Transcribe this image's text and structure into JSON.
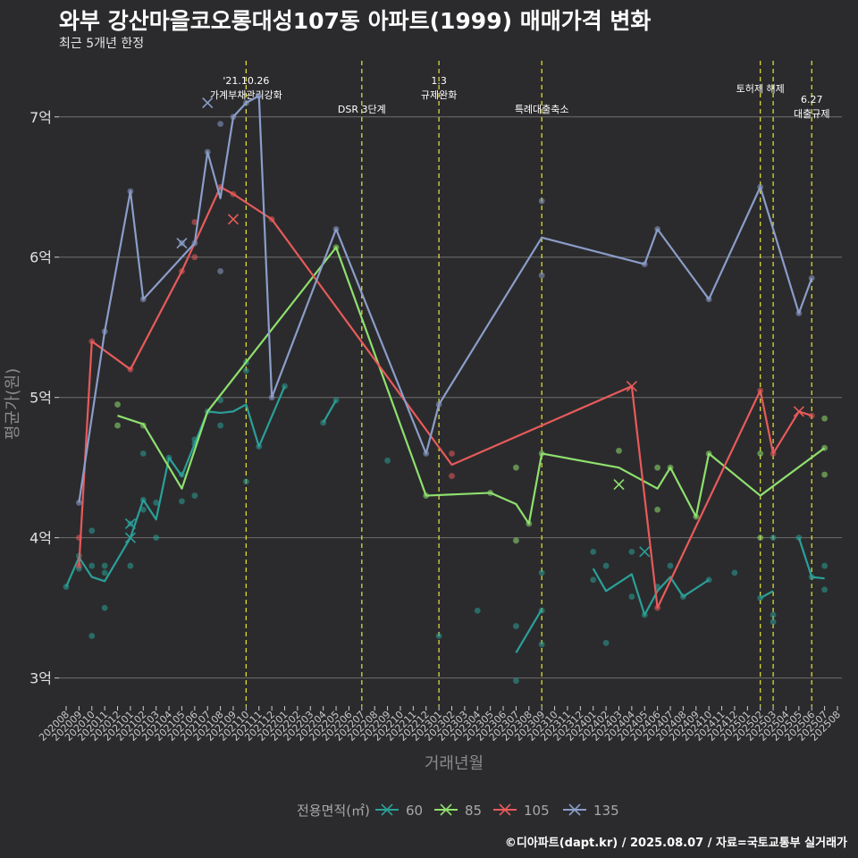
{
  "title": "와부 강산마을코오롱대성107동 아파트(1999) 매매가격 변화",
  "subtitle": "최근 5개년 한정",
  "credit": "©디아파트(dapt.kr) / 2025.08.07 / 자료=국토교통부 실거래가",
  "chart_data": {
    "type": "line",
    "xlabel": "거래년월",
    "ylabel": "평균가(원)",
    "ylim": [
      2.8,
      7.4
    ],
    "y_ticks": [
      {
        "value": 3,
        "label": "3억"
      },
      {
        "value": 4,
        "label": "4억"
      },
      {
        "value": 5,
        "label": "5억"
      },
      {
        "value": 6,
        "label": "6억"
      },
      {
        "value": 7,
        "label": "7억"
      }
    ],
    "x_ticks": [
      "202008",
      "202009",
      "202010",
      "202011",
      "202012",
      "202101",
      "202102",
      "202103",
      "202104",
      "202105",
      "202106",
      "202107",
      "202108",
      "202109",
      "202110",
      "202111",
      "202112",
      "202201",
      "202202",
      "202203",
      "202204",
      "202205",
      "202206",
      "202207",
      "202208",
      "202209",
      "202210",
      "202211",
      "202212",
      "202301",
      "202302",
      "202303",
      "202304",
      "202305",
      "202306",
      "202307",
      "202308",
      "202309",
      "202310",
      "202311",
      "202312",
      "202401",
      "202402",
      "202403",
      "202404",
      "202405",
      "202406",
      "202407",
      "202408",
      "202409",
      "202410",
      "202411",
      "202412",
      "202501",
      "202502",
      "202503",
      "202504",
      "202505",
      "202506",
      "202507",
      "202508"
    ],
    "legend_title": "전용면적(㎡)",
    "legend_position": "bottom",
    "events": [
      {
        "x": 14.0,
        "label": "'21.10.26\n가계부채관리강화"
      },
      {
        "x": 23.0,
        "label": "DSR 3단계"
      },
      {
        "x": 29.0,
        "label": "1.3\n규제완화"
      },
      {
        "x": 37.0,
        "label": "특례대출축소"
      },
      {
        "x": 54.0,
        "label": "토허제 해제"
      },
      {
        "x": 55.0,
        "label": ""
      },
      {
        "x": 58.0,
        "label": "6.27\n대출규제"
      }
    ],
    "series": [
      {
        "name": "60",
        "color": "#2aa098",
        "line": [
          [
            0,
            3.65
          ],
          [
            1,
            3.86
          ],
          [
            2,
            3.72
          ],
          [
            3,
            3.69
          ],
          [
            5,
            4.0
          ],
          [
            6,
            4.27
          ],
          [
            7,
            4.13
          ],
          [
            8,
            4.57
          ],
          [
            9,
            4.44
          ],
          [
            11,
            4.9
          ],
          [
            12,
            4.89
          ],
          [
            13,
            4.9
          ],
          [
            14,
            4.95
          ],
          [
            15,
            4.65
          ],
          [
            17,
            5.08
          ],
          null,
          [
            20,
            4.82
          ],
          [
            21,
            4.98
          ],
          null,
          [
            35,
            3.18
          ],
          [
            37,
            3.49
          ],
          null,
          [
            41,
            3.78
          ],
          [
            42,
            3.62
          ],
          [
            44,
            3.74
          ],
          [
            45,
            3.45
          ],
          [
            46,
            3.62
          ],
          [
            47,
            3.72
          ],
          [
            48,
            3.58
          ],
          [
            50,
            3.7
          ],
          null,
          [
            54,
            3.57
          ],
          [
            55,
            3.62
          ],
          null,
          [
            57,
            4.0
          ],
          [
            58,
            3.72
          ],
          [
            59,
            3.71
          ]
        ],
        "points": [
          [
            0,
            3.65
          ],
          [
            1,
            3.78
          ],
          [
            1,
            3.87
          ],
          [
            2,
            3.3
          ],
          [
            2,
            3.8
          ],
          [
            2,
            4.05
          ],
          [
            3,
            3.75
          ],
          [
            3,
            3.8
          ],
          [
            3,
            3.5
          ],
          [
            5,
            4.1
          ],
          [
            5,
            3.8
          ],
          [
            6,
            4.6
          ],
          [
            6,
            4.27
          ],
          [
            6,
            4.2
          ],
          [
            7,
            4.0
          ],
          [
            7,
            4.25
          ],
          [
            8,
            4.57
          ],
          [
            9,
            4.45
          ],
          [
            9,
            4.26
          ],
          [
            10,
            4.3
          ],
          [
            10,
            4.67
          ],
          [
            10,
            4.7
          ],
          [
            11,
            4.9
          ],
          [
            12,
            4.98
          ],
          [
            12,
            4.8
          ],
          [
            14,
            5.25
          ],
          [
            14,
            5.19
          ],
          [
            14,
            4.4
          ],
          [
            15,
            4.65
          ],
          [
            17,
            5.08
          ],
          [
            20,
            4.82
          ],
          [
            21,
            4.98
          ],
          [
            25,
            4.55
          ],
          [
            29,
            3.3
          ],
          [
            32,
            3.48
          ],
          [
            35,
            3.37
          ],
          [
            35,
            2.98
          ],
          [
            37,
            3.75
          ],
          [
            37,
            3.24
          ],
          [
            37,
            3.48
          ],
          [
            41,
            3.9
          ],
          [
            41,
            3.7
          ],
          [
            42,
            3.8
          ],
          [
            42,
            3.25
          ],
          [
            44,
            3.9
          ],
          [
            44,
            3.58
          ],
          [
            45,
            3.45
          ],
          [
            46,
            3.65
          ],
          [
            47,
            3.8
          ],
          [
            48,
            3.58
          ],
          [
            50,
            3.7
          ],
          [
            52,
            3.75
          ],
          [
            54,
            3.57
          ],
          [
            55,
            4.0
          ],
          [
            55,
            3.4
          ],
          [
            55,
            3.45
          ],
          [
            57,
            4.0
          ],
          [
            58,
            3.72
          ],
          [
            59,
            3.8
          ],
          [
            59,
            3.63
          ]
        ],
        "crosses": [
          [
            5,
            4.0
          ],
          [
            5,
            4.1
          ],
          [
            45,
            3.9
          ]
        ]
      },
      {
        "name": "85",
        "color": "#8fe06e",
        "line": [
          [
            4,
            4.87
          ],
          [
            6,
            4.81
          ],
          [
            9,
            4.35
          ],
          [
            11,
            4.9
          ],
          [
            21,
            6.07
          ],
          [
            28,
            4.3
          ],
          [
            33,
            4.32
          ],
          [
            35,
            4.24
          ],
          [
            36,
            4.1
          ],
          [
            37,
            4.6
          ],
          [
            43,
            4.5
          ],
          [
            46,
            4.35
          ],
          [
            47,
            4.5
          ],
          [
            49,
            4.15
          ],
          [
            50,
            4.6
          ],
          [
            54,
            4.3
          ],
          [
            59,
            4.64
          ]
        ],
        "points": [
          [
            4,
            4.95
          ],
          [
            4,
            4.8
          ],
          [
            6,
            4.8
          ],
          [
            21,
            6.07
          ],
          [
            28,
            4.3
          ],
          [
            33,
            4.32
          ],
          [
            35,
            4.5
          ],
          [
            35,
            3.98
          ],
          [
            36,
            4.1
          ],
          [
            37,
            4.6
          ],
          [
            43,
            4.62
          ],
          [
            46,
            4.5
          ],
          [
            46,
            4.2
          ],
          [
            47,
            4.5
          ],
          [
            49,
            4.15
          ],
          [
            50,
            4.6
          ],
          [
            54,
            4.6
          ],
          [
            54,
            4.0
          ],
          [
            59,
            4.64
          ],
          [
            59,
            4.85
          ],
          [
            59,
            4.45
          ]
        ],
        "crosses": [
          [
            43,
            4.38
          ]
        ]
      },
      {
        "name": "105",
        "color": "#e85a5a",
        "line": [
          [
            1,
            3.8
          ],
          [
            2,
            5.4
          ],
          [
            5,
            5.2
          ],
          [
            9,
            5.9
          ],
          [
            12,
            6.5
          ],
          [
            13,
            6.45
          ],
          [
            16,
            6.27
          ],
          [
            30,
            4.52
          ],
          [
            44,
            5.08
          ],
          [
            46,
            3.5
          ],
          [
            54,
            5.05
          ],
          [
            55,
            4.6
          ],
          [
            57,
            4.9
          ],
          [
            58,
            4.87
          ]
        ],
        "points": [
          [
            1,
            3.8
          ],
          [
            1,
            4.0
          ],
          [
            2,
            5.4
          ],
          [
            5,
            5.2
          ],
          [
            9,
            5.9
          ],
          [
            10,
            6.25
          ],
          [
            10,
            6.0
          ],
          [
            12,
            6.5
          ],
          [
            13,
            6.45
          ],
          [
            16,
            6.27
          ],
          [
            30,
            4.6
          ],
          [
            30,
            4.44
          ],
          [
            46,
            3.5
          ],
          [
            54,
            5.05
          ],
          [
            55,
            4.6
          ],
          [
            58,
            4.87
          ]
        ],
        "crosses": [
          [
            13,
            6.27
          ],
          [
            44,
            5.08
          ],
          [
            57,
            4.9
          ]
        ]
      },
      {
        "name": "135",
        "color": "#8b9dc9",
        "line": [
          [
            1,
            4.25
          ],
          [
            3,
            5.47
          ],
          [
            5,
            6.47
          ],
          [
            6,
            5.7
          ],
          [
            9,
            6.0
          ],
          [
            10,
            6.1
          ],
          [
            11,
            6.75
          ],
          [
            12,
            6.42
          ],
          [
            13,
            7.0
          ],
          [
            14,
            7.1
          ],
          [
            15,
            7.15
          ],
          [
            16,
            5.0
          ],
          [
            21,
            6.2
          ],
          [
            28,
            4.6
          ],
          [
            29,
            4.95
          ],
          [
            37,
            6.14
          ],
          [
            45,
            5.95
          ],
          [
            46,
            6.2
          ],
          [
            50,
            5.7
          ],
          [
            54,
            6.5
          ],
          [
            57,
            5.6
          ],
          [
            58,
            5.85
          ]
        ],
        "points": [
          [
            1,
            4.25
          ],
          [
            3,
            5.47
          ],
          [
            5,
            6.47
          ],
          [
            6,
            5.7
          ],
          [
            9,
            6.1
          ],
          [
            10,
            6.1
          ],
          [
            11,
            6.75
          ],
          [
            12,
            6.95
          ],
          [
            12,
            5.9
          ],
          [
            13,
            7.0
          ],
          [
            14,
            7.1
          ],
          [
            15,
            7.15
          ],
          [
            16,
            5.0
          ],
          [
            21,
            6.2
          ],
          [
            28,
            4.6
          ],
          [
            29,
            4.95
          ],
          [
            37,
            6.4
          ],
          [
            37,
            5.87
          ],
          [
            45,
            5.95
          ],
          [
            46,
            6.2
          ],
          [
            50,
            5.7
          ],
          [
            54,
            6.5
          ],
          [
            57,
            5.6
          ],
          [
            58,
            5.85
          ]
        ],
        "crosses": [
          [
            11,
            7.1
          ],
          [
            9,
            6.1
          ]
        ]
      }
    ]
  }
}
